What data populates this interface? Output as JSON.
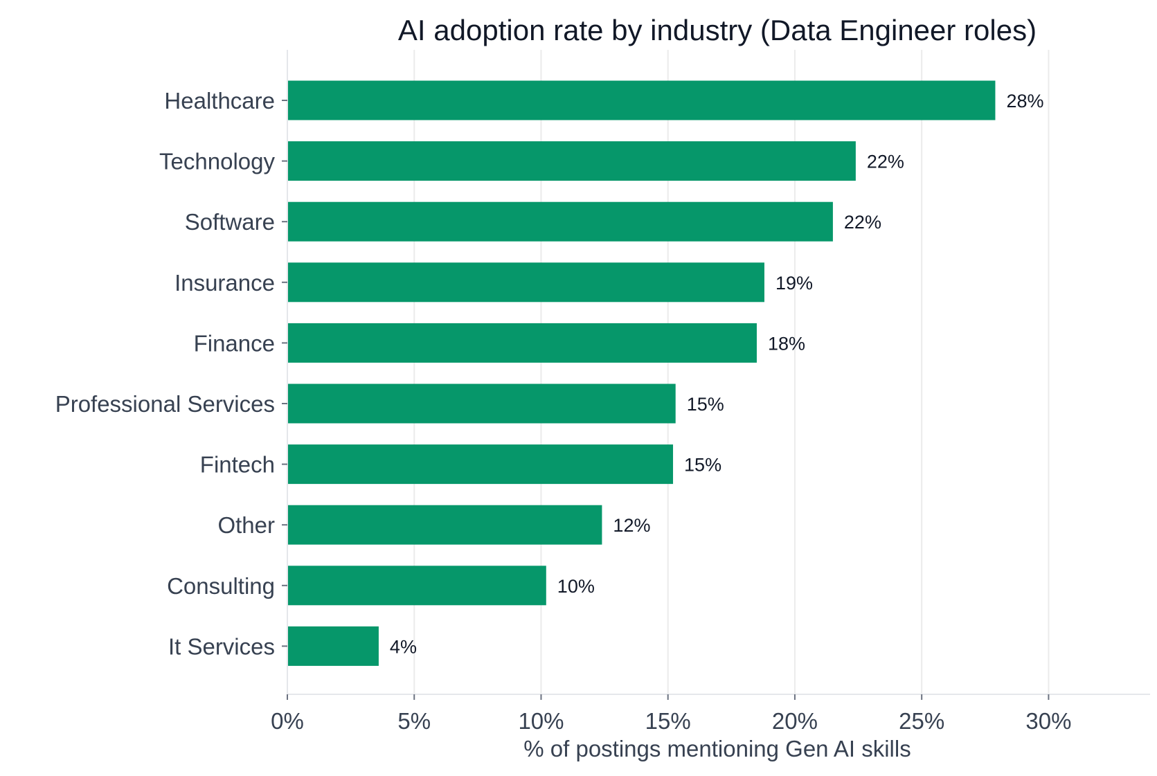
{
  "chart_data": {
    "type": "bar",
    "orientation": "horizontal",
    "title": "AI adoption rate by industry (Data Engineer roles)",
    "xlabel": "% of postings mentioning Gen AI skills",
    "ylabel": "",
    "xlim": [
      0,
      34
    ],
    "x_ticks": [
      0,
      5,
      10,
      15,
      20,
      25,
      30
    ],
    "x_tick_labels": [
      "0%",
      "5%",
      "10%",
      "15%",
      "20%",
      "25%",
      "30%"
    ],
    "grid": "vertical",
    "categories": [
      "Healthcare",
      "Technology",
      "Software",
      "Insurance",
      "Finance",
      "Professional Services",
      "Fintech",
      "Other",
      "Consulting",
      "It Services"
    ],
    "values": [
      27.9,
      22.4,
      21.5,
      18.8,
      18.5,
      15.3,
      15.2,
      12.4,
      10.2,
      3.6
    ],
    "data_labels": [
      "28%",
      "22%",
      "22%",
      "19%",
      "18%",
      "15%",
      "15%",
      "12%",
      "10%",
      "4%"
    ],
    "colors": {
      "bar": "#06976a",
      "grid": "#ebebeb",
      "axis": "#e5e7eb"
    }
  }
}
